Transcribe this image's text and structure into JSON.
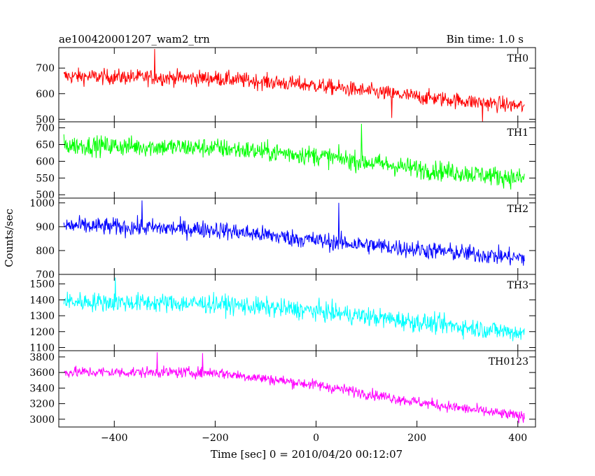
{
  "header": {
    "title": "ae100420001207_wam2_trn",
    "bin_time": "Bin time: 1.0 s"
  },
  "ylabel": "Counts/sec",
  "xlabel": "Time [sec] 0 = 2010/04/20 00:12:07",
  "chart_data": {
    "type": "line",
    "x_axis": {
      "range": [
        -510,
        435
      ],
      "ticks": [
        -400,
        -200,
        0,
        200,
        400
      ]
    },
    "x_sample": {
      "start": -500,
      "end": 413,
      "step": 1
    },
    "grid": false,
    "panels": [
      {
        "name": "TH0",
        "color": "#ff0000",
        "ylim": [
          490,
          780
        ],
        "yticks": [
          500,
          600,
          700
        ],
        "trend": [
          [
            -500,
            668
          ],
          [
            -200,
            660
          ],
          [
            0,
            632
          ],
          [
            200,
            588
          ],
          [
            413,
            550
          ]
        ],
        "noise": 28,
        "extremes": [
          [
            -320,
            775
          ],
          [
            150,
            505
          ],
          [
            330,
            490
          ]
        ]
      },
      {
        "name": "TH1",
        "color": "#00ff00",
        "ylim": [
          490,
          718
        ],
        "yticks": [
          500,
          550,
          600,
          650,
          700
        ],
        "trend": [
          [
            -500,
            648
          ],
          [
            -200,
            640
          ],
          [
            0,
            617
          ],
          [
            200,
            578
          ],
          [
            413,
            548
          ]
        ],
        "noise": 27,
        "extremes": [
          [
            90,
            712
          ]
        ]
      },
      {
        "name": "TH2",
        "color": "#0000ff",
        "ylim": [
          700,
          1020
        ],
        "yticks": [
          700,
          800,
          900,
          1000
        ],
        "trend": [
          [
            -500,
            905
          ],
          [
            -200,
            888
          ],
          [
            0,
            842
          ],
          [
            200,
            805
          ],
          [
            413,
            768
          ]
        ],
        "noise": 34,
        "extremes": [
          [
            -345,
            1010
          ],
          [
            45,
            1000
          ]
        ]
      },
      {
        "name": "TH3",
        "color": "#00ffff",
        "ylim": [
          1080,
          1560
        ],
        "yticks": [
          1100,
          1200,
          1300,
          1400,
          1500
        ],
        "trend": [
          [
            -500,
            1390
          ],
          [
            -200,
            1375
          ],
          [
            0,
            1330
          ],
          [
            200,
            1260
          ],
          [
            413,
            1190
          ]
        ],
        "noise": 55,
        "extremes": [
          [
            -398,
            1540
          ]
        ]
      },
      {
        "name": "TH0123",
        "color": "#ff00ff",
        "ylim": [
          2900,
          3880
        ],
        "yticks": [
          3000,
          3200,
          3400,
          3600,
          3800
        ],
        "trend": [
          [
            -500,
            3605
          ],
          [
            -200,
            3600
          ],
          [
            0,
            3440
          ],
          [
            200,
            3220
          ],
          [
            413,
            3030
          ]
        ],
        "noise": 65,
        "extremes": [
          [
            -315,
            3860
          ],
          [
            -225,
            3850
          ]
        ]
      }
    ]
  }
}
